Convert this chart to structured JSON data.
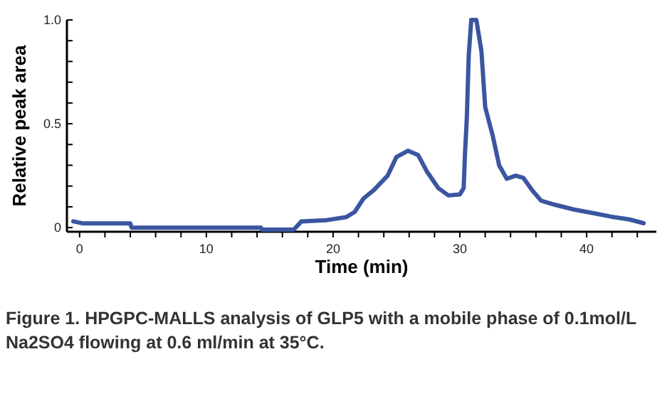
{
  "chart_data": {
    "type": "line",
    "xlabel": "Time (min)",
    "ylabel": "Relative peak area",
    "annotations": [
      "Figure 1. HPGPC-MALLS analysis of GLP5 with a mobile phase of 0.1mol/L Na2SO4 flowing at 0.6 ml/min at 35°C."
    ],
    "xlim": [
      -1,
      45.5
    ],
    "ylim": [
      -0.02,
      1.0
    ],
    "xticks": [
      0,
      {
        "value": 2,
        "label": null
      },
      {
        "value": 4,
        "label": null
      },
      {
        "value": 6,
        "label": null
      },
      {
        "value": 8,
        "label": null
      },
      10,
      {
        "value": 12,
        "label": null
      },
      {
        "value": 14,
        "label": null
      },
      {
        "value": 16,
        "label": null
      },
      {
        "value": 18,
        "label": null
      },
      20,
      {
        "value": 22,
        "label": null
      },
      {
        "value": 24,
        "label": null
      },
      {
        "value": 26,
        "label": null
      },
      {
        "value": 28,
        "label": null
      },
      30,
      {
        "value": 32,
        "label": null
      },
      {
        "value": 34,
        "label": null
      },
      {
        "value": 36,
        "label": null
      },
      {
        "value": 38,
        "label": null
      },
      40,
      {
        "value": 42,
        "label": null
      },
      {
        "value": 44,
        "label": null
      }
    ],
    "yticks": [
      0,
      {
        "value": 0.1,
        "label": null
      },
      {
        "value": 0.2,
        "label": null
      },
      {
        "value": 0.3,
        "label": null
      },
      {
        "value": 0.4,
        "label": null
      },
      {
        "value": 0.5,
        "label": "0.5"
      },
      {
        "value": 0.6,
        "label": null
      },
      {
        "value": 0.7,
        "label": null
      },
      {
        "value": 0.8,
        "label": null
      },
      {
        "value": 0.9,
        "label": null
      },
      {
        "value": 1.0,
        "label": "1.0"
      }
    ],
    "grid": false,
    "marker": "none",
    "line_style": "solid",
    "series": [
      {
        "color": "#3a56a0",
        "x": [
          -0.5,
          0.3,
          4,
          4.1,
          14.3,
          14.4,
          16.9,
          17.5,
          19.5,
          21,
          21.7,
          22.4,
          23.2,
          24.3,
          25,
          25.9,
          26.7,
          27.4,
          28.3,
          29.1,
          30,
          30.3,
          30.4,
          30.55,
          30.7,
          30.9,
          31.3,
          31.7,
          32,
          32.6,
          33.1,
          33.7,
          34.4,
          35,
          35.7,
          36.4,
          37.5,
          39,
          40.5,
          41.9,
          43.4,
          44.5
        ],
        "values": [
          0.03,
          0.02,
          0.02,
          0.0,
          0.0,
          -0.01,
          -0.01,
          0.03,
          0.036,
          0.05,
          0.075,
          0.14,
          0.18,
          0.25,
          0.34,
          0.37,
          0.35,
          0.27,
          0.19,
          0.155,
          0.16,
          0.19,
          0.35,
          0.53,
          0.83,
          1.0,
          1.0,
          0.85,
          0.58,
          0.44,
          0.3,
          0.235,
          0.25,
          0.24,
          0.18,
          0.13,
          0.11,
          0.087,
          0.07,
          0.053,
          0.039,
          0.021
        ]
      }
    ]
  }
}
